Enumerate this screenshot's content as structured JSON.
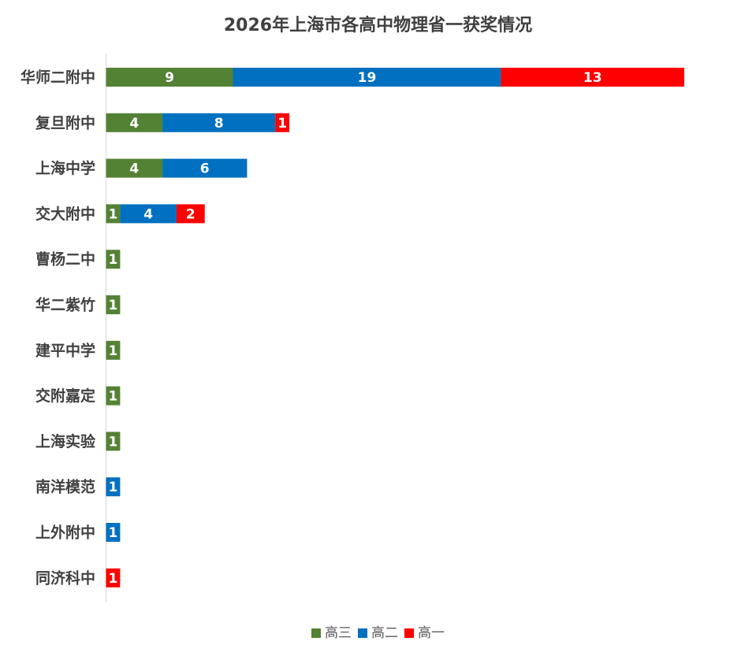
{
  "chart_data": {
    "type": "bar",
    "orientation": "horizontal",
    "stacked": true,
    "title": "2026年上海市各高中物理省一获奖情况",
    "categories": [
      "华师二附中",
      "复旦附中",
      "上海中学",
      "交大附中",
      "曹杨二中",
      "华二紫竹",
      "建平中学",
      "交附嘉定",
      "上海实验",
      "南洋模范",
      "上外附中",
      "同济科中"
    ],
    "series": [
      {
        "name": "高三",
        "color": "#548235",
        "values": [
          9,
          4,
          4,
          1,
          1,
          1,
          1,
          1,
          1,
          0,
          0,
          0
        ]
      },
      {
        "name": "高二",
        "color": "#0070C0",
        "values": [
          19,
          8,
          6,
          4,
          0,
          0,
          0,
          0,
          0,
          1,
          1,
          0
        ]
      },
      {
        "name": "高一",
        "color": "#FF0000",
        "values": [
          13,
          1,
          0,
          2,
          0,
          0,
          0,
          0,
          0,
          0,
          0,
          1
        ]
      }
    ],
    "xlim": [
      0,
      41
    ],
    "grid": false,
    "data_labels": true,
    "legend_position": "bottom"
  }
}
